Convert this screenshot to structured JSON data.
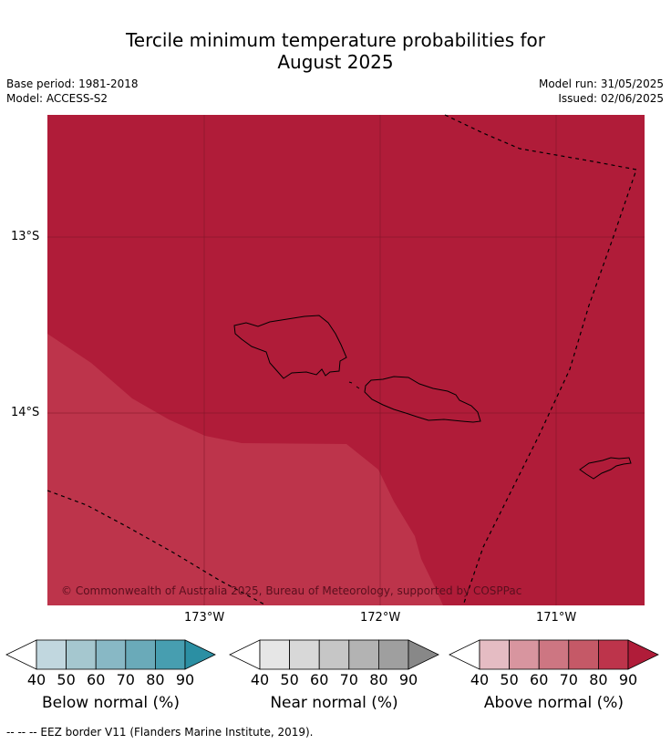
{
  "title": {
    "line1": "Tercile minimum temperature probabilities for",
    "line2": "August 2025"
  },
  "meta": {
    "base_period": "Base period: 1981-2018",
    "model": "Model: ACCESS-S2",
    "model_run": "Model run: 31/05/2025",
    "issued": "Issued: 02/06/2025"
  },
  "map": {
    "lat_labels": [
      "13°S",
      "14°S"
    ],
    "lon_labels": [
      "173°W",
      "172°W",
      "171°W"
    ],
    "copyright": "© Commonwealth of Australia 2025, Bureau of Meteorology, supported by COSPPac",
    "colors": {
      "above_90": "#b01c39",
      "above_80": "#bd344b",
      "coast": "#000000",
      "grid": "#7a1426"
    }
  },
  "colorbars": [
    {
      "id": "below",
      "label": "Below normal (%)",
      "ticks": [
        "40",
        "50",
        "60",
        "70",
        "80",
        "90"
      ],
      "colors": [
        "#c1d7df",
        "#a5c7cf",
        "#88b8c5",
        "#6aaab9",
        "#479eb0",
        "#2b8fa3"
      ]
    },
    {
      "id": "near",
      "label": "Near normal (%)",
      "ticks": [
        "40",
        "50",
        "60",
        "70",
        "80",
        "90"
      ],
      "colors": [
        "#e6e6e6",
        "#d8d8d8",
        "#c6c6c6",
        "#b3b3b3",
        "#9f9f9f",
        "#888888"
      ]
    },
    {
      "id": "above",
      "label": "Above normal (%)",
      "ticks": [
        "40",
        "50",
        "60",
        "70",
        "80",
        "90"
      ],
      "colors": [
        "#e5bcc3",
        "#d8959f",
        "#cd7682",
        "#c55967",
        "#bd344b",
        "#b01c39"
      ]
    }
  ],
  "footer": "--  --  -- EEZ border V11 (Flanders Marine Institute, 2019)."
}
